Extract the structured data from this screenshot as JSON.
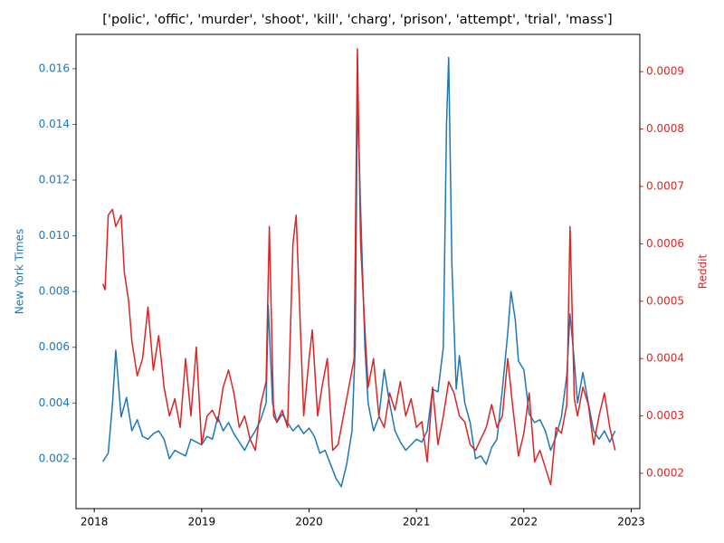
{
  "chart_data": {
    "type": "line",
    "title": "['polic', 'offic', 'murder', 'shoot', 'kill', 'charg', 'prison', 'attempt', 'trial', 'mass']",
    "y_label": "New York Times",
    "y2_label": "Reddit",
    "xlim": [
      2017.83,
      2023.08
    ],
    "xticks": [
      2018,
      2019,
      2020,
      2021,
      2022,
      2023
    ],
    "ylim": [
      0.00021,
      0.01723
    ],
    "yticks": [
      0.002,
      0.004,
      0.006,
      0.008,
      {
        "value": 0.01,
        "label": "0.010"
      },
      0.012,
      0.014,
      0.016
    ],
    "y2lim": [
      0.0001385,
      0.000965
    ],
    "y2ticks": [
      0.0002,
      0.0003,
      0.0004,
      0.0005,
      0.0006,
      0.0007,
      0.0008,
      0.0009
    ],
    "y_color": "#1f77b4",
    "y2_color": "#d62728",
    "series": [
      {
        "name": "New York Times",
        "color": "#1f77b4",
        "x": [
          2018.08,
          2018.13,
          2018.17,
          2018.2,
          2018.25,
          2018.3,
          2018.35,
          2018.4,
          2018.45,
          2018.5,
          2018.55,
          2018.6,
          2018.65,
          2018.7,
          2018.75,
          2018.8,
          2018.85,
          2018.9,
          2018.95,
          2019.0,
          2019.05,
          2019.1,
          2019.15,
          2019.2,
          2019.25,
          2019.3,
          2019.35,
          2019.4,
          2019.45,
          2019.5,
          2019.55,
          2019.6,
          2019.62,
          2019.66,
          2019.7,
          2019.75,
          2019.8,
          2019.85,
          2019.9,
          2019.95,
          2020.0,
          2020.05,
          2020.1,
          2020.15,
          2020.2,
          2020.25,
          2020.3,
          2020.35,
          2020.4,
          2020.43,
          2020.45,
          2020.48,
          2020.52,
          2020.55,
          2020.6,
          2020.65,
          2020.7,
          2020.75,
          2020.8,
          2020.85,
          2020.9,
          2020.95,
          2021.0,
          2021.05,
          2021.1,
          2021.15,
          2021.2,
          2021.25,
          2021.28,
          2021.3,
          2021.33,
          2021.37,
          2021.4,
          2021.45,
          2021.5,
          2021.55,
          2021.6,
          2021.65,
          2021.7,
          2021.75,
          2021.8,
          2021.85,
          2021.88,
          2021.92,
          2021.95,
          2022.0,
          2022.05,
          2022.1,
          2022.15,
          2022.2,
          2022.25,
          2022.3,
          2022.35,
          2022.4,
          2022.43,
          2022.47,
          2022.5,
          2022.55,
          2022.6,
          2022.65,
          2022.7,
          2022.75,
          2022.8,
          2022.85
        ],
        "values": [
          0.0019,
          0.0022,
          0.004,
          0.0059,
          0.0035,
          0.0042,
          0.003,
          0.0034,
          0.0028,
          0.0027,
          0.0029,
          0.003,
          0.0027,
          0.002,
          0.0023,
          0.0022,
          0.0021,
          0.0027,
          0.0026,
          0.0025,
          0.0028,
          0.0027,
          0.0035,
          0.003,
          0.0033,
          0.0029,
          0.0026,
          0.0023,
          0.0027,
          0.003,
          0.0034,
          0.004,
          0.0075,
          0.004,
          0.0033,
          0.0036,
          0.0033,
          0.003,
          0.0032,
          0.0029,
          0.0031,
          0.0028,
          0.0022,
          0.0023,
          0.0018,
          0.0013,
          0.001,
          0.0018,
          0.003,
          0.006,
          0.015,
          0.011,
          0.006,
          0.004,
          0.003,
          0.0035,
          0.0052,
          0.004,
          0.003,
          0.0026,
          0.0023,
          0.0025,
          0.0027,
          0.0026,
          0.003,
          0.0045,
          0.0044,
          0.006,
          0.014,
          0.0164,
          0.009,
          0.0045,
          0.0057,
          0.004,
          0.0033,
          0.002,
          0.0021,
          0.0018,
          0.0024,
          0.0027,
          0.0045,
          0.0065,
          0.008,
          0.007,
          0.0055,
          0.0052,
          0.0036,
          0.0033,
          0.0034,
          0.003,
          0.0023,
          0.0028,
          0.0035,
          0.005,
          0.0072,
          0.0055,
          0.004,
          0.0051,
          0.004,
          0.003,
          0.0027,
          0.003,
          0.0026,
          0.003
        ]
      },
      {
        "name": "Reddit",
        "color": "#d62728",
        "axis": "y2",
        "x": [
          2018.08,
          2018.1,
          2018.13,
          2018.17,
          2018.2,
          2018.25,
          2018.28,
          2018.32,
          2018.35,
          2018.4,
          2018.45,
          2018.5,
          2018.55,
          2018.6,
          2018.65,
          2018.7,
          2018.75,
          2018.8,
          2018.85,
          2018.9,
          2018.95,
          2019.0,
          2019.05,
          2019.1,
          2019.15,
          2019.2,
          2019.25,
          2019.3,
          2019.35,
          2019.4,
          2019.45,
          2019.5,
          2019.55,
          2019.6,
          2019.63,
          2019.67,
          2019.7,
          2019.75,
          2019.8,
          2019.85,
          2019.88,
          2019.92,
          2019.95,
          2020.0,
          2020.03,
          2020.08,
          2020.12,
          2020.17,
          2020.22,
          2020.27,
          2020.32,
          2020.37,
          2020.42,
          2020.45,
          2020.48,
          2020.52,
          2020.55,
          2020.6,
          2020.65,
          2020.7,
          2020.75,
          2020.8,
          2020.85,
          2020.9,
          2020.95,
          2021.0,
          2021.05,
          2021.1,
          2021.15,
          2021.2,
          2021.25,
          2021.3,
          2021.35,
          2021.4,
          2021.45,
          2021.5,
          2021.55,
          2021.6,
          2021.65,
          2021.7,
          2021.75,
          2021.8,
          2021.85,
          2021.9,
          2021.95,
          2022.0,
          2022.05,
          2022.1,
          2022.15,
          2022.2,
          2022.25,
          2022.3,
          2022.35,
          2022.4,
          2022.43,
          2022.47,
          2022.5,
          2022.55,
          2022.6,
          2022.65,
          2022.7,
          2022.75,
          2022.8,
          2022.85
        ],
        "values": [
          0.00053,
          0.00052,
          0.00065,
          0.00066,
          0.00063,
          0.00065,
          0.00055,
          0.0005,
          0.00043,
          0.00037,
          0.0004,
          0.00049,
          0.00038,
          0.00044,
          0.00035,
          0.0003,
          0.00033,
          0.00028,
          0.0004,
          0.0003,
          0.00042,
          0.00025,
          0.0003,
          0.00031,
          0.00029,
          0.00035,
          0.00038,
          0.00034,
          0.00028,
          0.0003,
          0.00026,
          0.00024,
          0.00032,
          0.00036,
          0.00063,
          0.0003,
          0.00029,
          0.00031,
          0.00028,
          0.0006,
          0.00065,
          0.00045,
          0.0003,
          0.0004,
          0.00045,
          0.0003,
          0.00035,
          0.0004,
          0.00024,
          0.00025,
          0.0003,
          0.00035,
          0.0004,
          0.00094,
          0.0006,
          0.00045,
          0.00035,
          0.0004,
          0.0003,
          0.00028,
          0.00034,
          0.00031,
          0.00036,
          0.0003,
          0.00033,
          0.00028,
          0.00029,
          0.00022,
          0.00035,
          0.00025,
          0.0003,
          0.00036,
          0.00034,
          0.0003,
          0.00029,
          0.00025,
          0.00024,
          0.00026,
          0.00028,
          0.00032,
          0.00028,
          0.0003,
          0.0004,
          0.00031,
          0.00023,
          0.00027,
          0.00034,
          0.00022,
          0.00024,
          0.00021,
          0.00018,
          0.00028,
          0.00027,
          0.00032,
          0.00063,
          0.00033,
          0.0003,
          0.00035,
          0.00032,
          0.00025,
          0.0003,
          0.00034,
          0.00028,
          0.00024
        ]
      }
    ]
  }
}
